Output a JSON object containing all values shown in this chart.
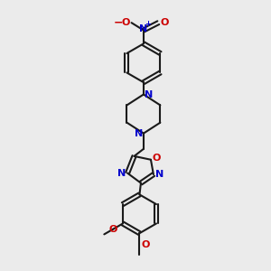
{
  "bg_color": "#ebebeb",
  "bond_color": "#1a1a1a",
  "N_color": "#0000cc",
  "O_color": "#cc0000",
  "line_width": 1.5,
  "figsize": [
    3.0,
    3.0
  ],
  "dpi": 100,
  "xlim": [
    -2.5,
    2.5
  ],
  "ylim": [
    -5.5,
    4.5
  ]
}
